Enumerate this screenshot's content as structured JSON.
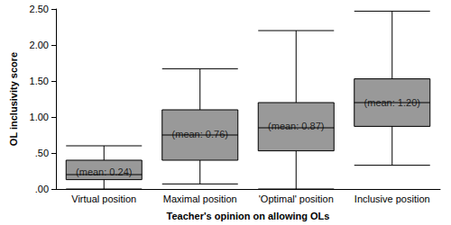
{
  "chart_data": {
    "type": "boxplot",
    "x_label": "Teacher's opinion on allowing OLs",
    "y_label": "OL inclusivity score",
    "categories": [
      "Virtual position",
      "Maximal position",
      "'Optimal' position",
      "Inclusive position"
    ],
    "values": [
      [
        0.0,
        0.13,
        0.2,
        0.4,
        0.6
      ],
      [
        0.07,
        0.4,
        0.75,
        1.1,
        1.67
      ],
      [
        0.0,
        0.53,
        0.85,
        1.2,
        2.2
      ],
      [
        0.33,
        0.87,
        1.2,
        1.53,
        2.47
      ]
    ],
    "means": [
      0.24,
      0.76,
      0.87,
      1.2
    ],
    "mean_labels": [
      "(mean: 0.24)",
      "(mean: 0.76)",
      "(mean: 0.87)",
      "(mean: 1.20)"
    ],
    "color": "#999999",
    "ylim": [
      0,
      2.5
    ],
    "yticks": [
      {
        "value": 0,
        "label": ".00"
      },
      {
        "value": 0.5,
        "label": ".50"
      },
      {
        "value": 1,
        "label": "1.00"
      },
      {
        "value": 1.5,
        "label": "1.50"
      },
      {
        "value": 2,
        "label": "2.00"
      },
      {
        "value": 2.5,
        "label": "2.50"
      }
    ],
    "grid": false
  }
}
